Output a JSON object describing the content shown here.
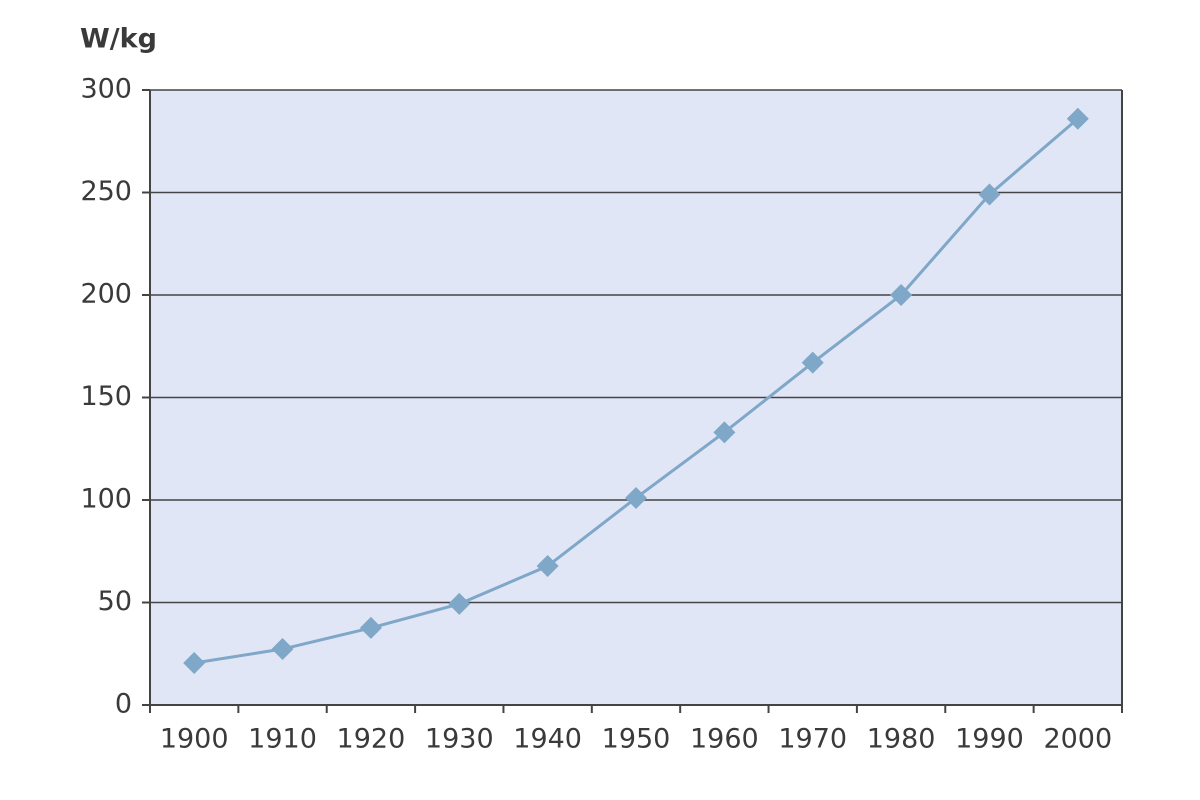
{
  "chart_data": {
    "type": "line",
    "y_label": "W/kg",
    "categories": [
      "1900",
      "1910",
      "1920",
      "1930",
      "1940",
      "1950",
      "1960",
      "1970",
      "1980",
      "1990",
      "2000"
    ],
    "values": [
      20.5,
      27.3,
      37.6,
      49.3,
      67.8,
      101,
      133,
      167,
      200,
      249,
      286
    ],
    "color": "#7ea7c8",
    "marker": "diamond",
    "plot_background": "#e1e6f6",
    "ylim": [
      0,
      300
    ],
    "yticks": [
      0,
      50,
      100,
      150,
      200,
      250,
      300
    ],
    "grid": true
  }
}
